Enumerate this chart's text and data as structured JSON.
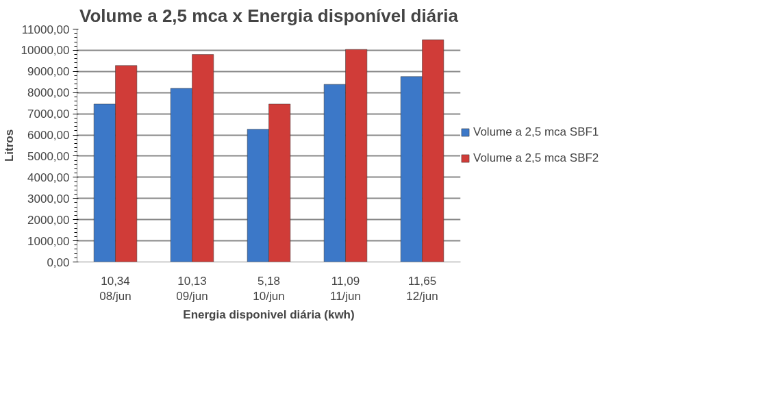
{
  "chart_data": {
    "type": "bar",
    "title": "Volume a 2,5 mca x Energia disponível diária",
    "xlabel": "Energia disponivel diária (kwh)",
    "ylabel": "Litros",
    "categories": [
      "10,34\n08/jun",
      "10,13\n09/jun",
      "5,18\n10/jun",
      "11,09\n11/jun",
      "11,65\n12/jun"
    ],
    "series": [
      {
        "name": "Volume a 2,5 mca SBF1",
        "color": "#3c78c8",
        "values": [
          7460,
          8200,
          6270,
          8390,
          8760
        ]
      },
      {
        "name": "Volume a 2,5 mca SBF2",
        "color": "#d03c38",
        "values": [
          9280,
          9800,
          7460,
          10040,
          10500
        ]
      }
    ],
    "ylim": [
      0,
      11000
    ],
    "yticks": [
      {
        "value": 0,
        "label": "0,00"
      },
      {
        "value": 1000,
        "label": "1000,00"
      },
      {
        "value": 2000,
        "label": "2000,00"
      },
      {
        "value": 3000,
        "label": "3000,00"
      },
      {
        "value": 4000,
        "label": "4000,00"
      },
      {
        "value": 5000,
        "label": "5000,00"
      },
      {
        "value": 6000,
        "label": "6000,00"
      },
      {
        "value": 7000,
        "label": "7000,00"
      },
      {
        "value": 8000,
        "label": "8000,00"
      },
      {
        "value": 9000,
        "label": "9000,00"
      },
      {
        "value": 10000,
        "label": "10000,00"
      },
      {
        "value": 11000,
        "label": "11000,00"
      }
    ],
    "grid": "y",
    "legend": "right"
  }
}
